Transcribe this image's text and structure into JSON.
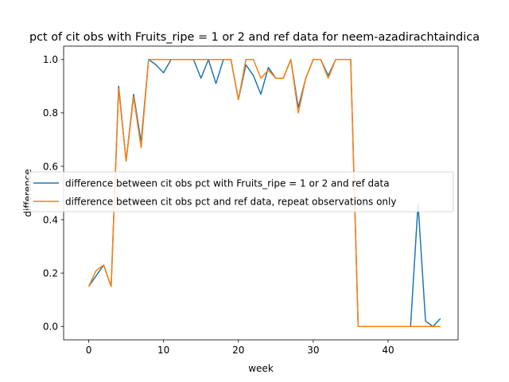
{
  "chart_data": {
    "type": "line",
    "title": "pct of cit obs with Fruits_ripe = 1 or 2 and ref data for neem-azadirachtaindica",
    "xlabel": "week",
    "ylabel": "difference",
    "xlim": [
      -3.35,
      49.35
    ],
    "ylim": [
      -0.05,
      1.05
    ],
    "xticks": [
      0,
      10,
      20,
      30,
      40
    ],
    "yticks": [
      0.0,
      0.2,
      0.4,
      0.6,
      0.8,
      1.0
    ],
    "grid": false,
    "legend_position": "center-right",
    "x": [
      0,
      1,
      2,
      3,
      4,
      5,
      6,
      7,
      8,
      9,
      10,
      11,
      12,
      13,
      14,
      15,
      16,
      17,
      18,
      19,
      20,
      21,
      22,
      23,
      24,
      25,
      26,
      27,
      28,
      29,
      30,
      31,
      32,
      33,
      34,
      35,
      36,
      37,
      38,
      39,
      40,
      41,
      42,
      43,
      44,
      45,
      46,
      47
    ],
    "series": [
      {
        "name": "difference between cit obs pct with Fruits_ripe = 1 or 2 and ref data",
        "color": "#1f77b4",
        "values": [
          0.15,
          0.19,
          0.23,
          0.15,
          0.9,
          0.62,
          0.87,
          0.69,
          1.0,
          0.98,
          0.95,
          1.0,
          1.0,
          1.0,
          1.0,
          0.93,
          1.0,
          0.91,
          1.0,
          1.0,
          0.85,
          0.98,
          0.94,
          0.87,
          0.97,
          0.93,
          0.93,
          1.0,
          0.82,
          0.93,
          1.0,
          1.0,
          0.94,
          1.0,
          1.0,
          1.0,
          0.0,
          0.0,
          0.0,
          0.0,
          0.0,
          0.0,
          0.0,
          0.0,
          0.46,
          0.02,
          0.0,
          0.03
        ]
      },
      {
        "name": "difference between cit obs pct and ref data, repeat observations only",
        "color": "#ff7f0e",
        "values": [
          0.15,
          0.21,
          0.23,
          0.15,
          0.89,
          0.62,
          0.86,
          0.67,
          1.0,
          1.0,
          1.0,
          1.0,
          1.0,
          1.0,
          1.0,
          1.0,
          1.0,
          1.0,
          1.0,
          1.0,
          0.85,
          1.0,
          1.0,
          0.93,
          0.96,
          0.93,
          0.93,
          1.0,
          0.8,
          0.93,
          1.0,
          1.0,
          0.93,
          1.0,
          1.0,
          1.0,
          0.0,
          0.0,
          0.0,
          0.0,
          0.0,
          0.0,
          0.0,
          0.0,
          0.0,
          0.0,
          0.0,
          0.0
        ]
      }
    ]
  }
}
